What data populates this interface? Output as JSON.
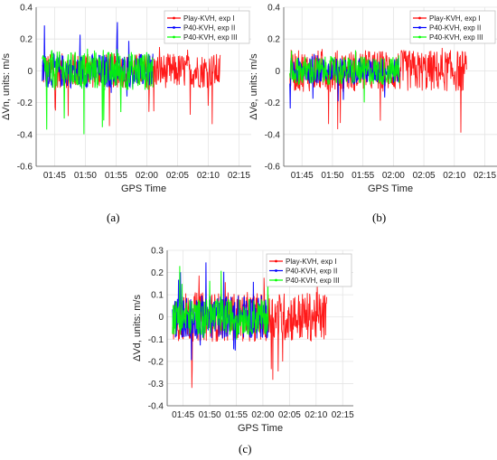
{
  "panels": [
    {
      "label": "(a)"
    },
    {
      "label": "(b)"
    },
    {
      "label": "(c)"
    }
  ],
  "chart_data": [
    {
      "type": "line",
      "ylabel": "ΔVn, units: m/s",
      "xlabel": "GPS Time",
      "xticks": [
        "01:45",
        "01:50",
        "01:55",
        "02:00",
        "02:05",
        "02:10",
        "02:15"
      ],
      "xlim": [
        "01:42",
        "02:17"
      ],
      "ylim": [
        -0.6,
        0.4
      ],
      "yticks": [
        "-0.6",
        "-0.4",
        "-0.2",
        "0",
        "0.2",
        "0.4"
      ],
      "grid": true,
      "legend_position": "top-right",
      "series": [
        {
          "name": "Play-KVH, exp I",
          "color": "#ff0000",
          "x_range": [
            "01:43",
            "02:12"
          ],
          "y_range": [
            -0.35,
            0.15
          ]
        },
        {
          "name": "P40-KVH, exp II",
          "color": "#0000ff",
          "x_range": [
            "01:43",
            "02:01"
          ],
          "y_range": [
            -0.18,
            0.31
          ]
        },
        {
          "name": "P40-KVH, exp III",
          "color": "#00ff00",
          "x_range": [
            "01:43",
            "02:01"
          ],
          "y_range": [
            -0.42,
            0.14
          ]
        }
      ]
    },
    {
      "type": "line",
      "ylabel": "ΔVe, units: m/s",
      "xlabel": "GPS Time",
      "xticks": [
        "01:45",
        "01:50",
        "01:55",
        "02:00",
        "02:05",
        "02:10",
        "02:15"
      ],
      "xlim": [
        "01:42",
        "02:17"
      ],
      "ylim": [
        -0.6,
        0.4
      ],
      "yticks": [
        "-0.6",
        "-0.4",
        "-0.2",
        "0",
        "0.2",
        "0.4"
      ],
      "grid": true,
      "legend_position": "top-right",
      "series": [
        {
          "name": "Play-KVH, exp I",
          "color": "#ff0000",
          "x_range": [
            "01:43",
            "02:12"
          ],
          "y_range": [
            -0.45,
            0.15
          ]
        },
        {
          "name": "P40-KVH, exp II",
          "color": "#0000ff",
          "x_range": [
            "01:43",
            "02:01"
          ],
          "y_range": [
            -0.25,
            0.12
          ]
        },
        {
          "name": "P40-KVH, exp III",
          "color": "#00ff00",
          "x_range": [
            "01:43",
            "02:01"
          ],
          "y_range": [
            -0.28,
            0.13
          ]
        }
      ]
    },
    {
      "type": "line",
      "ylabel": "ΔVd, units: m/s",
      "xlabel": "GPS Time",
      "xticks": [
        "01:45",
        "01:50",
        "01:55",
        "02:00",
        "02:05",
        "02:10",
        "02:15"
      ],
      "xlim": [
        "01:42",
        "02:17"
      ],
      "ylim": [
        -0.4,
        0.3
      ],
      "yticks": [
        "-0.4",
        "-0.3",
        "-0.2",
        "-0.1",
        "0",
        "0.1",
        "0.2",
        "0.3"
      ],
      "grid": true,
      "legend_position": "top-right",
      "series": [
        {
          "name": "Play-KVH, exp I",
          "color": "#ff0000",
          "x_range": [
            "01:43",
            "02:12"
          ],
          "y_range": [
            -0.32,
            0.19
          ]
        },
        {
          "name": "P40-KVH, exp II",
          "color": "#0000ff",
          "x_range": [
            "01:43",
            "02:01"
          ],
          "y_range": [
            -0.2,
            0.25
          ]
        },
        {
          "name": "P40-KVH, exp III",
          "color": "#00ff00",
          "x_range": [
            "01:43",
            "02:01"
          ],
          "y_range": [
            -0.13,
            0.24
          ]
        }
      ]
    }
  ]
}
